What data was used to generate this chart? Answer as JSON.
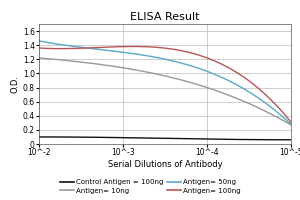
{
  "title": "ELISA Result",
  "ylabel": "O.D.",
  "xlabel": "Serial Dilutions of Antibody",
  "x_tick_labels": [
    "10^-2",
    "10^-3",
    "10^-4",
    "10^-5"
  ],
  "x_values": [
    0,
    1,
    2,
    3
  ],
  "ylim": [
    0,
    1.7
  ],
  "yticks": [
    0,
    0.2,
    0.4,
    0.6,
    0.8,
    1.0,
    1.2,
    1.4,
    1.6
  ],
  "lines": [
    {
      "label": "Control Antigen = 100ng",
      "color": "#111111",
      "y": [
        0.1,
        0.09,
        0.07,
        0.06
      ]
    },
    {
      "label": "Antigen= 10ng",
      "color": "#999999",
      "y": [
        1.22,
        1.08,
        0.8,
        0.27
      ]
    },
    {
      "label": "Antigen= 50ng",
      "color": "#55aacc",
      "y": [
        1.46,
        1.3,
        1.03,
        0.28
      ]
    },
    {
      "label": "Antigen= 100ng",
      "color": "#bb5555",
      "y": [
        1.36,
        1.38,
        1.22,
        0.31
      ]
    }
  ],
  "background_color": "#ffffff",
  "grid_color": "#bbbbbb",
  "title_fontsize": 8,
  "label_fontsize": 6,
  "tick_fontsize": 5.5,
  "legend_fontsize": 5
}
